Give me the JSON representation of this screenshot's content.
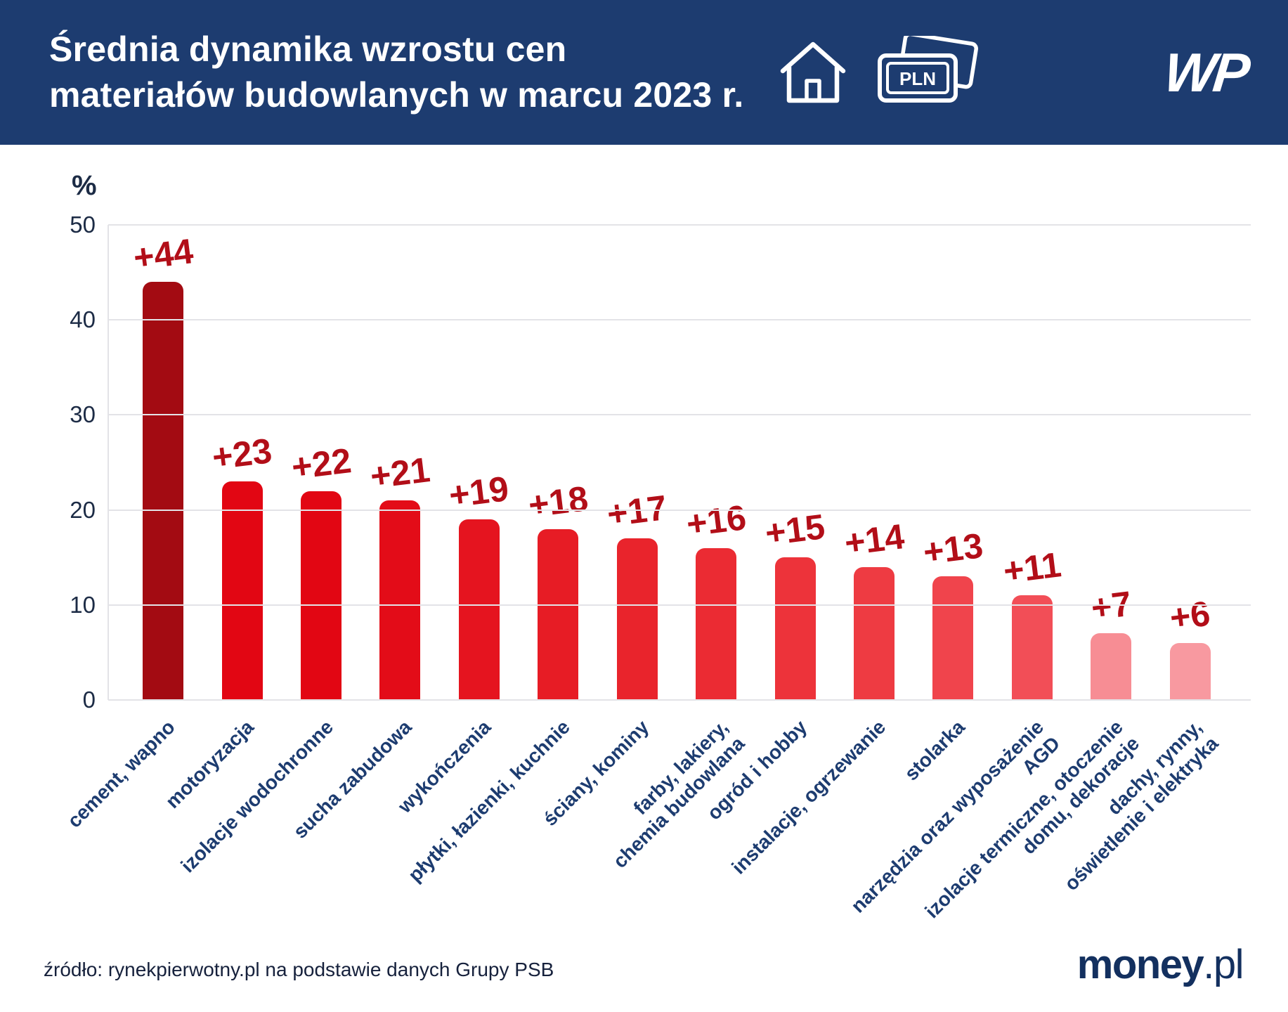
{
  "header": {
    "title": "Średnia dynamika wzrostu cen\nmateriałów budowlanych w marcu 2023 r.",
    "bg_color": "#1d3c70",
    "pln_label": "PLN",
    "wp_logo_text": "WP"
  },
  "chart_data": {
    "type": "bar",
    "title": "Średnia dynamika wzrostu cen materiałów budowlanych w marcu 2023 r.",
    "xlabel": "",
    "ylabel": "%",
    "ylim": [
      0,
      50
    ],
    "yticks": [
      0,
      10,
      20,
      30,
      40,
      50
    ],
    "grid": true,
    "legend_position": "none",
    "categories": [
      "cement, wapno",
      "motoryzacja",
      "izolacje wodochronne",
      "sucha zabudowa",
      "wykończenia",
      "płytki, łazienki, kuchnie",
      "ściany, kominy",
      "farby, lakiery,\nchemia budowlana",
      "ogród i hobby",
      "instalacje, ogrzewanie",
      "stolarka",
      "narzędzia oraz wyposażenie\nAGD",
      "izolacje termiczne, otoczenie\ndomu, dekoracje",
      "dachy, rynny,\noświetlenie i elektryka"
    ],
    "values": [
      44,
      23,
      22,
      21,
      19,
      18,
      17,
      16,
      15,
      14,
      13,
      11,
      7,
      6
    ],
    "value_labels": [
      "+44",
      "+23",
      "+22",
      "+21",
      "+19",
      "+18",
      "+17",
      "+16",
      "+15",
      "+14",
      "+13",
      "+11",
      "+7",
      "+6"
    ],
    "bar_colors": [
      "#a30b12",
      "#e20613",
      "#e20613",
      "#e30c18",
      "#e5141f",
      "#e71c25",
      "#e9242c",
      "#eb2b33",
      "#ed333a",
      "#ee3b42",
      "#f0444c",
      "#f24e57",
      "#f78d94",
      "#f899a0"
    ],
    "value_label_color": "#b20e18",
    "axis_color": "#e3e3e7",
    "tick_color": "#1c2b45",
    "category_label_color": "#1d3c70"
  },
  "footer": {
    "source": "źródło: rynekpierwotny.pl na podstawie danych Grupy PSB",
    "brand_bold": "money",
    "brand_light": ".pl"
  }
}
